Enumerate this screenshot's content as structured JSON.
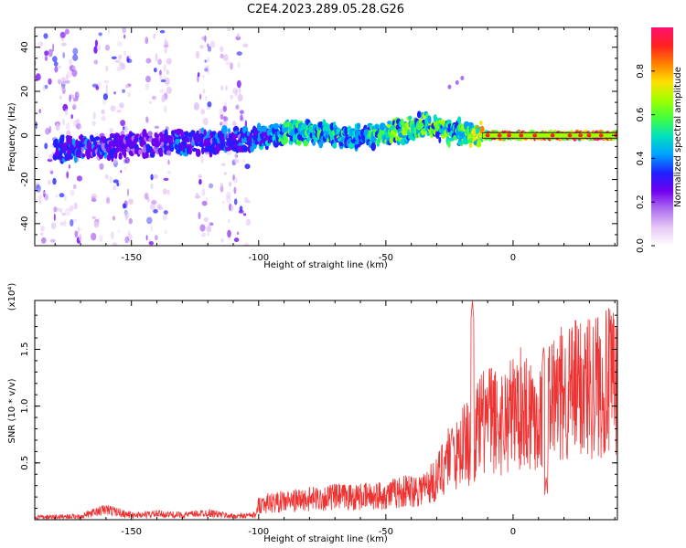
{
  "title": "C2E4.2023.289.05.28.G26",
  "colors": {
    "snr_line": "#ee3333",
    "trace_outline": "#1a1a1a",
    "axis": "#000000",
    "colormap": [
      "#ffffff",
      "#e6c8f5",
      "#b070f0",
      "#7000f0",
      "#2020ff",
      "#00a0ff",
      "#00e0c0",
      "#40ff40",
      "#a0ff00",
      "#ffe000",
      "#ff8000",
      "#ff2020",
      "#ff1070"
    ]
  },
  "chart_data": [
    {
      "type": "heatmap",
      "name": "spectrogram",
      "title": "C2E4.2023.289.05.28.G26",
      "xlabel": "Height of straight line (km)",
      "ylabel": "Frequency (Hz)",
      "xlim": [
        -188,
        41
      ],
      "ylim": [
        -50,
        49
      ],
      "x_ticks": [
        -150,
        -100,
        -50,
        0
      ],
      "y_ticks": [
        -40,
        -20,
        0,
        20,
        40
      ],
      "colorbar": {
        "label": "Normalized spectral amplitude",
        "range": [
          0,
          1
        ],
        "ticks": [
          0.0,
          0.2,
          0.4,
          0.6,
          0.8
        ],
        "tick_labels": [
          "0.0",
          "0.2",
          "0.4",
          "0.6",
          "0.8"
        ]
      },
      "ridge": {
        "x": [
          -170,
          -160,
          -150,
          -140,
          -130,
          -120,
          -110,
          -100,
          -90,
          -80,
          -70,
          -60,
          -50,
          -40,
          -35,
          -30,
          -20,
          -10,
          0,
          10,
          20,
          30,
          41
        ],
        "freq": [
          -6,
          -5,
          -4,
          -4,
          -3,
          -3,
          -3,
          -1,
          1,
          2,
          0,
          -1,
          1,
          3,
          5,
          3,
          1,
          0,
          0,
          0,
          0,
          0,
          0
        ],
        "peak_amplitude": [
          0.35,
          0.35,
          0.3,
          0.3,
          0.35,
          0.35,
          0.35,
          0.4,
          0.5,
          0.55,
          0.5,
          0.45,
          0.6,
          0.65,
          0.6,
          0.6,
          0.55,
          0.8,
          0.95,
          0.95,
          0.95,
          0.95,
          0.95
        ]
      },
      "noise_bands_x": [
        [
          -188,
          -170
        ],
        [
          -165,
          -150
        ],
        [
          -145,
          -135
        ],
        [
          -125,
          -118
        ],
        [
          -115,
          -104
        ]
      ],
      "sparse_points": [
        {
          "x": -25,
          "y": 22
        },
        {
          "x": -20,
          "y": 26
        },
        {
          "x": -22,
          "y": 24
        }
      ]
    },
    {
      "type": "line",
      "name": "snr",
      "xlabel": "Height of straight line (km)",
      "ylabel": "SNR (10 * v/v)",
      "y_scale_label": "(x10⁴)",
      "xlim": [
        -188,
        41
      ],
      "ylim": [
        0,
        1.93
      ],
      "x_ticks": [
        -150,
        -100,
        -50,
        0
      ],
      "y_ticks": [
        0.5,
        1.0,
        1.5
      ],
      "y_tick_labels": [
        "0.5",
        "1.0",
        "1.5"
      ],
      "series": [
        {
          "key": "SNR",
          "x": [
            -188,
            -170,
            -160,
            -150,
            -140,
            -130,
            -120,
            -110,
            -101,
            -100,
            -90,
            -80,
            -70,
            -60,
            -50,
            -45,
            -40,
            -35,
            -30,
            -25,
            -22,
            -20,
            -17,
            -15,
            -12,
            -10,
            -5,
            0,
            5,
            10,
            15,
            20,
            25,
            30,
            35,
            41
          ],
          "y": [
            0.02,
            0.03,
            0.09,
            0.04,
            0.05,
            0.04,
            0.06,
            0.03,
            0.04,
            0.14,
            0.16,
            0.18,
            0.2,
            0.2,
            0.22,
            0.24,
            0.26,
            0.28,
            0.35,
            0.6,
            0.55,
            0.7,
            0.65,
            0.75,
            0.85,
            0.9,
            0.85,
            0.95,
            1.0,
            0.9,
            1.05,
            1.1,
            1.15,
            1.2,
            1.2,
            1.2
          ],
          "spikes": [
            {
              "x": -16,
              "y": 1.93
            },
            {
              "x": 12,
              "y": 1.53
            },
            {
              "x": -24,
              "y": 0.82
            },
            {
              "x": 13,
              "y": 0.38
            }
          ]
        }
      ]
    }
  ]
}
